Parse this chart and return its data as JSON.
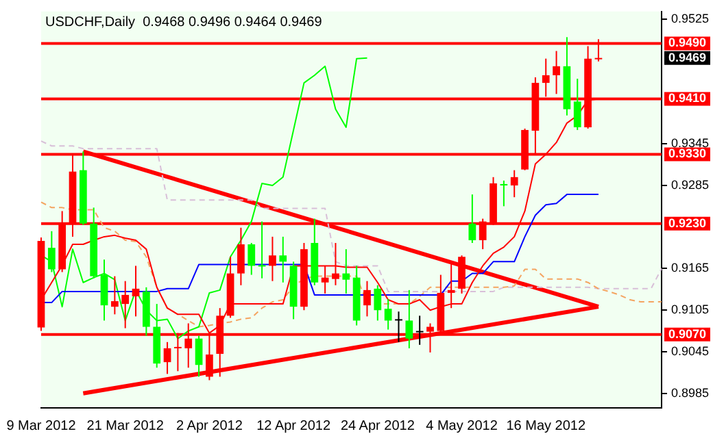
{
  "chart_data": {
    "type": "candlestick",
    "title": "USDCHF,Daily  0.9468 0.9496 0.9464 0.9469",
    "categories": [
      "9 Mar 2012",
      null,
      null,
      null,
      null,
      null,
      null,
      null,
      "21 Mar 2012",
      null,
      null,
      null,
      null,
      null,
      null,
      null,
      "2 Apr 2012",
      null,
      null,
      null,
      null,
      null,
      null,
      null,
      "12 Apr 2012",
      null,
      null,
      null,
      null,
      null,
      null,
      null,
      "24 Apr 2012",
      null,
      null,
      null,
      null,
      null,
      null,
      null,
      "4 May 2012",
      null,
      null,
      null,
      null,
      null,
      null,
      null,
      "16 May 2012",
      null,
      null,
      null,
      null,
      null,
      null,
      null,
      null,
      null,
      null,
      null
    ],
    "ohlc": [
      [
        0.908,
        0.921,
        0.9075,
        0.9205
      ],
      [
        0.9195,
        0.9219,
        0.916,
        0.9164
      ],
      [
        0.9164,
        0.9248,
        0.916,
        0.9231
      ],
      [
        0.923,
        0.9329,
        0.9211,
        0.9305
      ],
      [
        0.9307,
        0.9334,
        0.9228,
        0.923
      ],
      [
        0.923,
        0.9253,
        0.9151,
        0.9154
      ],
      [
        0.9156,
        0.9178,
        0.909,
        0.9112
      ],
      [
        0.911,
        0.9154,
        0.9099,
        0.9118
      ],
      [
        0.9114,
        0.9147,
        0.9079,
        0.9127
      ],
      [
        0.9125,
        0.9169,
        0.9096,
        0.9136
      ],
      [
        0.9132,
        0.9138,
        0.9068,
        0.9081
      ],
      [
        0.9081,
        0.9114,
        0.9022,
        0.9028
      ],
      [
        0.903,
        0.9059,
        0.9013,
        0.905
      ],
      [
        0.905,
        0.9072,
        0.9017,
        0.9052
      ],
      [
        0.905,
        0.9086,
        0.9022,
        0.9064
      ],
      [
        0.9064,
        0.9068,
        0.9009,
        0.9026
      ],
      [
        0.9009,
        0.9072,
        0.9004,
        0.9041
      ],
      [
        0.9042,
        0.9108,
        0.9009,
        0.9097
      ],
      [
        0.9097,
        0.9182,
        0.9094,
        0.9158
      ],
      [
        0.9158,
        0.9224,
        0.9141,
        0.92
      ],
      [
        0.92,
        0.9202,
        0.9156,
        0.9169
      ],
      [
        0.917,
        0.9233,
        0.9151,
        0.9168
      ],
      [
        0.9169,
        0.9211,
        0.9147,
        0.9184
      ],
      [
        0.9184,
        0.9211,
        0.9145,
        0.9175
      ],
      [
        0.9169,
        0.9175,
        0.9092,
        0.911
      ],
      [
        0.911,
        0.9202,
        0.9105,
        0.9193
      ],
      [
        0.9202,
        0.9237,
        0.9141,
        0.9145
      ],
      [
        0.9145,
        0.9169,
        0.9129,
        0.9152
      ],
      [
        0.915,
        0.9202,
        0.9141,
        0.9158
      ],
      [
        0.9158,
        0.9193,
        0.9129,
        0.9149
      ],
      [
        0.9152,
        0.9169,
        0.9083,
        0.909
      ],
      [
        0.9112,
        0.9147,
        0.9096,
        0.9134
      ],
      [
        0.9136,
        0.9141,
        0.909,
        0.9105
      ],
      [
        0.9107,
        0.9121,
        0.9077,
        0.909
      ],
      [
        0.9092,
        0.9103,
        0.9059,
        0.9092
      ],
      [
        0.909,
        0.9134,
        0.905,
        0.9064
      ],
      [
        0.9075,
        0.9097,
        0.9055,
        0.9075
      ],
      [
        0.9074,
        0.9086,
        0.9044,
        0.9081
      ],
      [
        0.9075,
        0.9156,
        0.9072,
        0.913
      ],
      [
        0.913,
        0.9173,
        0.9108,
        0.9134
      ],
      [
        0.9136,
        0.9184,
        0.9129,
        0.9182
      ],
      [
        0.923,
        0.9272,
        0.9202,
        0.9206
      ],
      [
        0.9206,
        0.9237,
        0.9193,
        0.9233
      ],
      [
        0.923,
        0.9297,
        0.9228,
        0.9288
      ],
      [
        0.9287,
        0.9292,
        0.9255,
        0.9285
      ],
      [
        0.9285,
        0.9307,
        0.9268,
        0.9297
      ],
      [
        0.9308,
        0.9367,
        0.9307,
        0.9365
      ],
      [
        0.9364,
        0.9441,
        0.933,
        0.9433
      ],
      [
        0.9433,
        0.9468,
        0.9413,
        0.9444
      ],
      [
        0.9444,
        0.9479,
        0.9417,
        0.9457
      ],
      [
        0.9457,
        0.9499,
        0.9386,
        0.9395
      ],
      [
        0.9406,
        0.9439,
        0.9365,
        0.9369
      ],
      [
        0.9369,
        0.9486,
        0.9367,
        0.9468
      ],
      [
        0.9468,
        0.9496,
        0.9464,
        0.9469
      ],
      null,
      null,
      null,
      null,
      null,
      null
    ],
    "colors": [
      "#ff0000",
      "#00ff00",
      "#ff0000",
      "#ff0000",
      "#00ff00",
      "#00ff00",
      "#00ff00",
      "#ff0000",
      "#ff0000",
      "#ff0000",
      "#00ff00",
      "#00ff00",
      "#ff0000",
      "#ff0000",
      "#ff0000",
      "#00ff00",
      "#ff0000",
      "#ff0000",
      "#ff0000",
      "#ff0000",
      "#00ff00",
      "#00ff00",
      "#ff0000",
      "#00ff00",
      "#00ff00",
      "#ff0000",
      "#00ff00",
      "#ff0000",
      "#ff0000",
      "#00ff00",
      "#00ff00",
      "#ff0000",
      "#00ff00",
      "#00ff00",
      "#000000",
      "#00ff00",
      "#000000",
      "#ff0000",
      "#ff0000",
      "#ff0000",
      "#ff0000",
      "#00ff00",
      "#ff0000",
      "#ff0000",
      "#00ff00",
      "#ff0000",
      "#ff0000",
      "#ff0000",
      "#ff0000",
      "#ff0000",
      "#00ff00",
      "#00ff00",
      "#ff0000",
      "#ff0000",
      null,
      null,
      null,
      null,
      null,
      null
    ],
    "series": [
      {
        "type": "line",
        "color": "#ff0000",
        "values": [
          0.912,
          0.9145,
          0.917,
          0.92,
          0.92,
          0.9206,
          0.9211,
          0.9213,
          0.9209,
          0.9206,
          0.9193,
          0.9138,
          0.9108,
          0.9099,
          0.9099,
          0.9099,
          0.9072,
          0.9083,
          0.9114,
          0.9114,
          0.9114,
          0.9114,
          0.9114,
          0.9114,
          0.9169,
          0.9169,
          0.9169,
          0.9169,
          0.9169,
          0.9167,
          0.9167,
          0.9167,
          0.9145,
          0.912,
          0.9114,
          0.9114,
          0.912,
          0.9105,
          0.911,
          0.9114,
          0.9114,
          0.9145,
          0.9169,
          0.9187,
          0.9196,
          0.9211,
          0.9248,
          0.9316,
          0.933,
          0.9347,
          0.9375,
          0.9386,
          0.9408,
          0.941,
          null,
          null,
          null,
          null,
          null,
          null
        ]
      },
      {
        "type": "line",
        "color": "#0000ff",
        "values": [
          0.9116,
          0.9116,
          0.9132,
          0.9132,
          0.9132,
          0.9132,
          0.9132,
          0.9132,
          0.9132,
          0.9132,
          0.9132,
          0.9132,
          0.9136,
          0.9136,
          0.9136,
          0.9171,
          0.9171,
          0.9171,
          0.9171,
          0.9171,
          0.9171,
          0.9171,
          0.9171,
          0.9171,
          0.9171,
          0.9171,
          0.9127,
          0.9127,
          0.9127,
          0.9127,
          0.9127,
          0.9127,
          0.9127,
          0.9127,
          0.9127,
          0.9127,
          0.9127,
          0.9127,
          0.9127,
          0.9147,
          0.9147,
          0.9158,
          0.9158,
          0.9175,
          0.9175,
          0.9175,
          0.9211,
          0.9242,
          0.9257,
          0.9259,
          0.9272,
          0.9272,
          0.9272,
          0.9272,
          null,
          null,
          null,
          null,
          null,
          null
        ]
      },
      {
        "type": "line",
        "color": "#00ff00",
        "values": [
          0.9184,
          0.9175,
          0.911,
          0.9193,
          0.9145,
          0.9152,
          0.9158,
          0.9149,
          0.909,
          0.9134,
          0.9105,
          0.909,
          0.9092,
          0.9064,
          0.9075,
          0.9081,
          0.913,
          0.9134,
          0.9182,
          0.9206,
          0.9233,
          0.9288,
          0.9285,
          0.9297,
          0.9365,
          0.9433,
          0.9444,
          0.9457,
          0.9395,
          0.9369,
          0.9468,
          0.9469,
          null,
          null,
          null,
          null,
          null,
          null,
          null,
          null,
          null,
          null,
          null,
          null,
          null,
          null,
          null,
          null,
          null,
          null,
          null,
          null,
          null,
          null,
          null,
          null,
          null,
          null,
          null,
          null
        ]
      },
      {
        "type": "line",
        "color": "#f4a460",
        "line_style": "dashed",
        "values": [
          0.9261,
          0.9253,
          0.9253,
          0.925,
          0.925,
          0.925,
          0.9224,
          0.9219,
          0.9206,
          0.9204,
          0.9182,
          0.9138,
          0.9108,
          0.9099,
          0.909,
          0.9081,
          0.9083,
          0.9086,
          0.9088,
          0.9092,
          0.9094,
          0.9108,
          0.9117,
          0.912,
          0.914,
          0.915,
          0.9154,
          0.9154,
          0.9154,
          0.9154,
          0.9154,
          0.9114,
          0.9114,
          0.9114,
          0.9114,
          0.9114,
          0.9125,
          0.9138,
          0.9138,
          0.9138,
          0.9138,
          0.9138,
          0.9138,
          0.9138,
          0.9138,
          0.914,
          0.9164,
          0.9164,
          0.915,
          0.915,
          0.915,
          0.915,
          0.9145,
          0.9136,
          0.9132,
          0.9127,
          0.912,
          0.9117,
          0.9117,
          0.9117
        ]
      },
      {
        "type": "line",
        "color": "#d8bfd8",
        "line_style": "dashed",
        "values": [
          0.9349,
          0.9342,
          0.9342,
          0.9342,
          0.9338,
          0.9338,
          0.9338,
          0.9338,
          0.9338,
          0.9338,
          0.9338,
          0.9338,
          0.9264,
          0.9264,
          0.9264,
          0.9264,
          0.9264,
          0.9264,
          0.9264,
          0.9264,
          0.9264,
          0.9252,
          0.9252,
          0.9252,
          0.9252,
          0.9252,
          0.9252,
          0.9252,
          0.9175,
          0.9169,
          0.9169,
          0.9169,
          0.9169,
          0.9132,
          0.9132,
          0.9132,
          0.9132,
          0.9132,
          0.9132,
          0.9132,
          0.9132,
          0.9132,
          0.9132,
          0.9132,
          0.9138,
          0.9138,
          0.9138,
          0.9138,
          0.9138,
          0.9138,
          0.9138,
          0.9138,
          0.9138,
          0.9136,
          0.9136,
          0.9136,
          0.9136,
          0.9136,
          0.9136,
          0.9165
        ]
      },
      {
        "type": "line",
        "color": "#ff0000",
        "values": [
          null,
          null,
          null,
          null,
          0.9334,
          null,
          null,
          null,
          null,
          null,
          null,
          null,
          null,
          null,
          null,
          null,
          null,
          null,
          null,
          null,
          null,
          null,
          null,
          null,
          null,
          null,
          null,
          null,
          null,
          null,
          null,
          null,
          null,
          null,
          null,
          null,
          null,
          null,
          null,
          null,
          null,
          null,
          null,
          null,
          null,
          null,
          null,
          null,
          null,
          null,
          null,
          null,
          null,
          0.911,
          null,
          null,
          null,
          null,
          null,
          null
        ]
      },
      {
        "type": "line",
        "color": "#ff0000",
        "values": [
          null,
          null,
          null,
          null,
          0.8985,
          null,
          null,
          null,
          null,
          null,
          null,
          null,
          null,
          null,
          null,
          null,
          null,
          null,
          null,
          null,
          null,
          null,
          null,
          null,
          null,
          null,
          null,
          null,
          null,
          null,
          null,
          null,
          null,
          null,
          null,
          null,
          null,
          null,
          null,
          null,
          null,
          null,
          null,
          null,
          null,
          null,
          null,
          null,
          null,
          null,
          null,
          null,
          null,
          0.911,
          null,
          null,
          null,
          null,
          null,
          null
        ]
      }
    ],
    "ylim": [
      0.8964,
      0.9536
    ],
    "yticks": [
      0.9525,
      0.9345,
      0.9285,
      0.9165,
      0.9105,
      0.9045,
      0.8985
    ],
    "ref_lines": [
      {
        "axis": "y",
        "value": 0.949,
        "label": "0.9490",
        "color": "#ff0000"
      },
      {
        "axis": "y",
        "value": 0.941,
        "label": "0.9410",
        "color": "#ff0000"
      },
      {
        "axis": "y",
        "value": 0.933,
        "label": "0.9330",
        "color": "#ff0000"
      },
      {
        "axis": "y",
        "value": 0.923,
        "label": "0.9230",
        "color": "#ff0000"
      },
      {
        "axis": "y",
        "value": 0.907,
        "label": "0.9070",
        "color": "#ff0000"
      }
    ],
    "annotations": [
      "0.9469"
    ],
    "legend": false,
    "grid": false
  }
}
